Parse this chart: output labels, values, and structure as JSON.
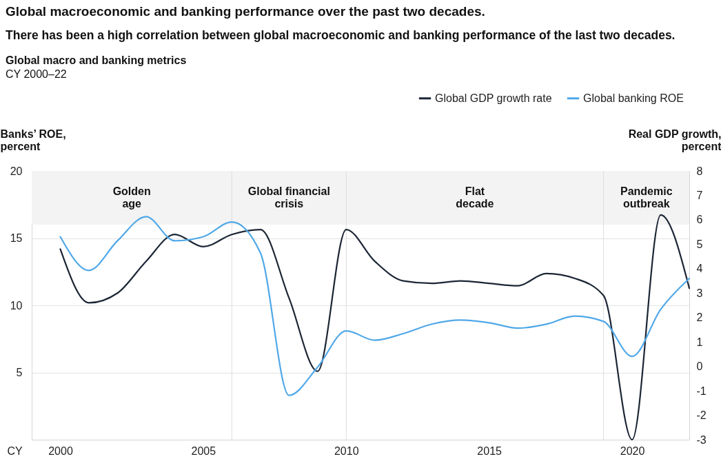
{
  "chart_data": {
    "type": "line",
    "title": "Global macroeconomic and banking performance over the past two decades.",
    "subtitle": "There has been a high correlation between global macroeconomic and banking performance of the last two decades.",
    "xlabel": "CY",
    "ylabel": "Banks’ ROE, percent",
    "y2label": "Real GDP growth, percent",
    "annotations": [
      "Global macro and banking metrics",
      "CY 2000–22",
      "Golden age",
      "Global financial crisis",
      "Flat decade",
      "Pandemic outbreak"
    ],
    "x": [
      2000,
      2001,
      2002,
      2003,
      2004,
      2005,
      2006,
      2007,
      2008,
      2009,
      2010,
      2011,
      2012,
      2013,
      2014,
      2015,
      2016,
      2017,
      2018,
      2019,
      2020,
      2021,
      2022
    ],
    "series": [
      {
        "name": "Global GDP growth rate",
        "color": "#1b2535",
        "axis": "y2",
        "values": [
          4.8,
          2.6,
          3.0,
          4.3,
          5.4,
          4.9,
          5.4,
          5.6,
          2.8,
          -0.2,
          5.6,
          4.3,
          3.5,
          3.4,
          3.5,
          3.4,
          3.3,
          3.8,
          3.6,
          2.9,
          -3.0,
          6.2,
          3.2
        ]
      },
      {
        "name": "Global banking ROE",
        "color": "#4fa8e8",
        "values": [
          15.1,
          12.6,
          14.8,
          16.6,
          14.8,
          15.1,
          16.2,
          13.9,
          3.3,
          5.4,
          8.1,
          7.4,
          7.9,
          8.6,
          8.9,
          8.7,
          8.3,
          8.6,
          9.2,
          8.8,
          6.2,
          9.7,
          12.0
        ]
      }
    ],
    "xlim": [
      1999,
      2022
    ],
    "xticks": [
      2000,
      2005,
      2010,
      2015,
      2020
    ],
    "ylim": [
      0,
      20
    ],
    "yticks": [
      5,
      10,
      15,
      20
    ],
    "y2lim": [
      -3,
      8
    ],
    "y2ticks": [
      -3,
      -2,
      -1,
      0,
      1,
      2,
      3,
      4,
      5,
      6,
      7,
      8
    ],
    "bands": [
      {
        "axis": "y",
        "from": 16,
        "to": 20,
        "color": "#f3f3f3"
      }
    ],
    "ref_lines": [
      {
        "axis": "x",
        "value": 2006,
        "color": "#dddddd"
      },
      {
        "axis": "x",
        "value": 2010,
        "color": "#dddddd"
      },
      {
        "axis": "x",
        "value": 2019,
        "color": "#dddddd"
      }
    ],
    "grid": "y",
    "legend": "top right"
  }
}
